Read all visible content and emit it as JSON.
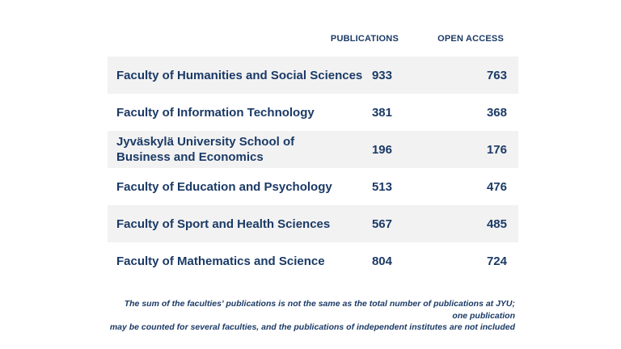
{
  "table": {
    "columns": [
      "PUBLICATIONS",
      "OPEN ACCESS"
    ],
    "rows": [
      {
        "faculty": "Faculty of Humanities and Social Sciences",
        "publications": "933",
        "open_access": "763"
      },
      {
        "faculty": "Faculty of Information Technology",
        "publications": "381",
        "open_access": "368"
      },
      {
        "faculty": "Jyväskylä University School of\nBusiness and Economics",
        "publications": "196",
        "open_access": "176"
      },
      {
        "faculty": "Faculty of Education and Psychology",
        "publications": "513",
        "open_access": "476"
      },
      {
        "faculty": "Faculty of Sport and Health Sciences",
        "publications": "567",
        "open_access": "485"
      },
      {
        "faculty": "Faculty of Mathematics and Science",
        "publications": "804",
        "open_access": "724"
      }
    ]
  },
  "footnote": {
    "line1": "The sum of the faculties’ publications is not the same as the total number of publications at JYU; one publication",
    "line2": "may be counted for several faculties, and the publications of independent institutes are not included"
  },
  "colors": {
    "text": "#1b3a66",
    "row_alt": "#f2f2f2",
    "background": "#ffffff"
  },
  "chart_data": {
    "type": "table",
    "title": "",
    "columns": [
      "PUBLICATIONS",
      "OPEN ACCESS"
    ],
    "categories": [
      "Faculty of Humanities and Social Sciences",
      "Faculty of Information Technology",
      "Jyväskylä University School of Business and Economics",
      "Faculty of Education and Psychology",
      "Faculty of Sport and Health Sciences",
      "Faculty of Mathematics and Science"
    ],
    "series": [
      {
        "name": "PUBLICATIONS",
        "values": [
          933,
          381,
          196,
          513,
          567,
          804
        ]
      },
      {
        "name": "OPEN ACCESS",
        "values": [
          763,
          368,
          176,
          476,
          485,
          724
        ]
      }
    ],
    "footnote": "The sum of the faculties’ publications is not the same as the total number of publications at JYU; one publication may be counted for several faculties, and the publications of independent institutes are not included",
    "layout_hints": {
      "zebra_rows": "odd rows shaded",
      "value_alignment": "right",
      "header_position": "top"
    }
  }
}
